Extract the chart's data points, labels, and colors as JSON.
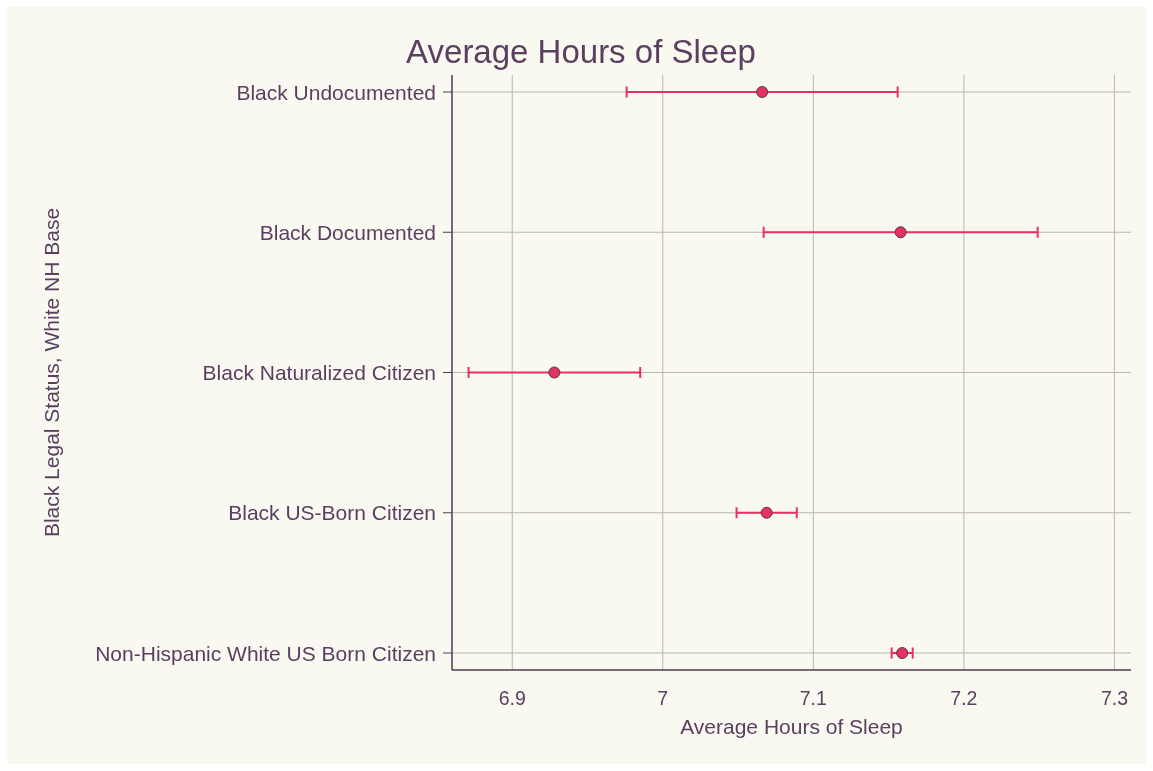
{
  "chart_data": {
    "type": "scatter",
    "orientation": "horizontal",
    "title": "Average Hours of Sleep",
    "xlabel": "Average Hours of Sleep",
    "ylabel": "Black Legal Status, White NH Base",
    "categories": [
      "Black Undocumented",
      "Black Documented",
      "Black Naturalized Citizen",
      "Black US-Born Citizen",
      "Non-Hispanic White US Born Citizen"
    ],
    "values": [
      7.066,
      7.158,
      6.928,
      7.069,
      7.159
    ],
    "errors": [
      0.09,
      0.091,
      0.057,
      0.02,
      0.007
    ],
    "color": "#e6325f",
    "xlim": [
      6.86,
      7.311
    ],
    "xticks": [
      6.9,
      7,
      7.1,
      7.2,
      7.3
    ],
    "grid": true,
    "marker": "circle"
  }
}
